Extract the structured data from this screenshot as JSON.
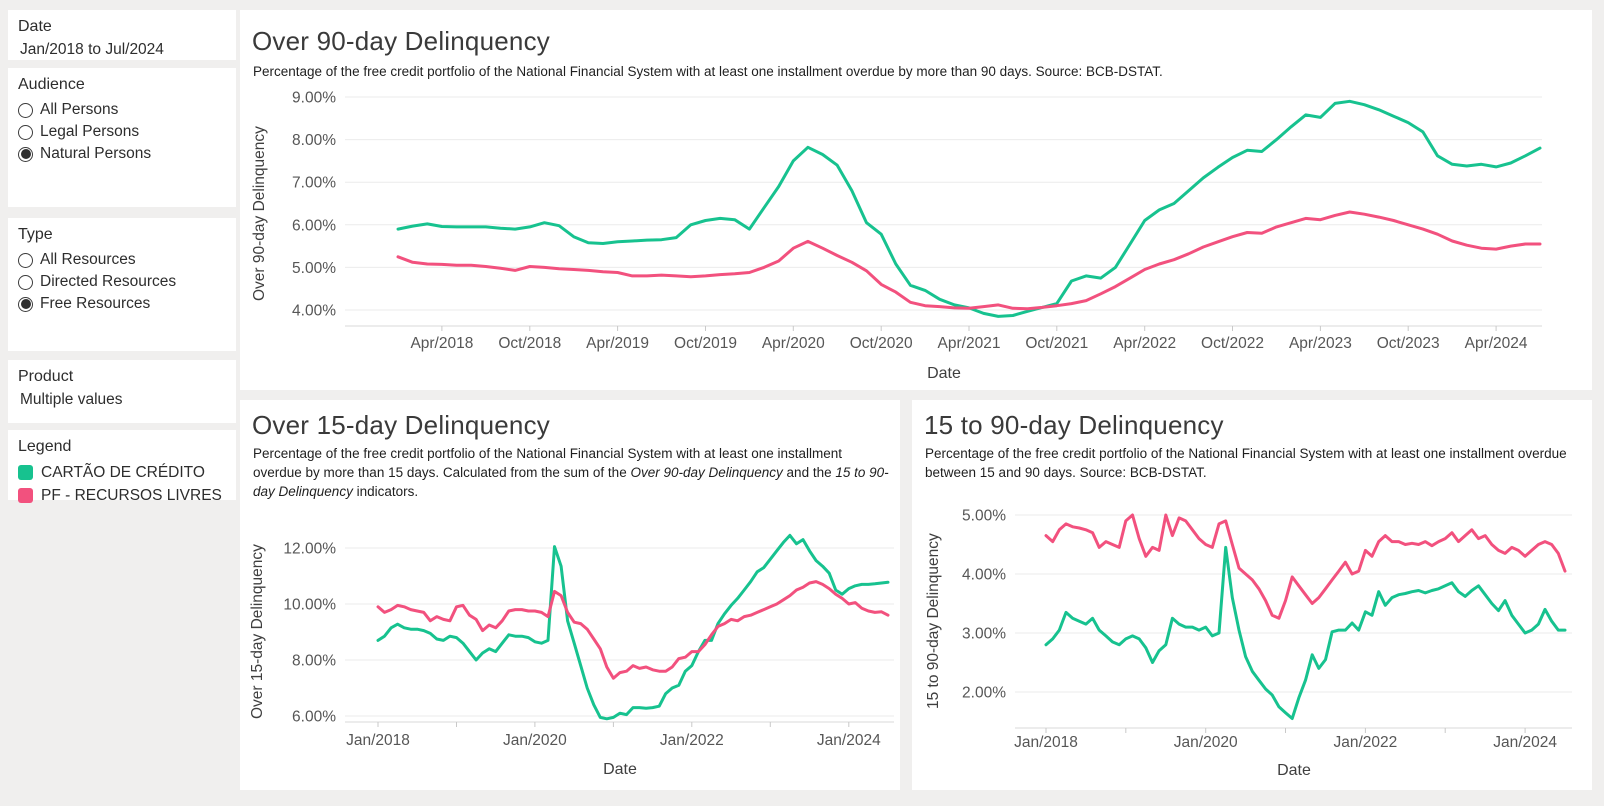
{
  "page": {
    "background": "#f0efee",
    "panel_bg": "#ffffff"
  },
  "colors": {
    "green": "#17c28f",
    "pink": "#f2517e",
    "grid": "#ebebeb",
    "axis_line": "#d8d8d8",
    "tick_mark": "#c9c9c9",
    "tick_text": "#565656"
  },
  "sidebar": {
    "date": {
      "title": "Date",
      "value": "Jan/2018 to Jul/2024"
    },
    "audience": {
      "title": "Audience",
      "options": [
        {
          "label": "All Persons",
          "selected": false
        },
        {
          "label": "Legal Persons",
          "selected": false
        },
        {
          "label": "Natural Persons",
          "selected": true
        }
      ]
    },
    "type": {
      "title": "Type",
      "options": [
        {
          "label": "All Resources",
          "selected": false
        },
        {
          "label": "Directed Resources",
          "selected": false
        },
        {
          "label": "Free Resources",
          "selected": true
        }
      ]
    },
    "product": {
      "title": "Product",
      "value": "Multiple values"
    },
    "legend": {
      "title": "Legend",
      "items": [
        {
          "label": "CARTÃO DE CRÉDITO",
          "color": "#17c28f"
        },
        {
          "label": "PF - RECURSOS LIVRES",
          "color": "#f2517e"
        }
      ]
    }
  },
  "chart_data": [
    {
      "type": "line",
      "name_slug": "over-90-day-delinquency",
      "title": "Over 90-day Delinquency",
      "subtitle_parts": [
        {
          "text": "Percentage of the free credit portfolio of the National Financial System with at least one installment overdue by more than 90 days. Source: BCB-DSTAT.",
          "italic": false
        }
      ],
      "xlabel": "Date",
      "ylabel": "Over 90-day Delinquency",
      "x_start": "Jan/2018",
      "x_end": "Jul/2024",
      "frequency": "monthly",
      "y_ticks": [
        4,
        5,
        6,
        7,
        8,
        9
      ],
      "ylim": [
        3.5,
        9.4
      ],
      "grid": true,
      "legend_position": "external-sidebar",
      "x_tick_months": [
        3,
        9,
        15,
        21,
        27,
        33,
        39,
        45,
        51,
        57,
        63,
        69,
        75
      ],
      "x_tick_labels": [
        "Apr/2018",
        "Oct/2018",
        "Apr/2019",
        "Oct/2019",
        "Apr/2020",
        "Oct/2020",
        "Apr/2021",
        "Oct/2021",
        "Apr/2022",
        "Oct/2022",
        "Apr/2023",
        "Oct/2023",
        "Apr/2024"
      ],
      "x_minor_tick_months": [
        3,
        9,
        15,
        21,
        27,
        33,
        39,
        45,
        51,
        57,
        63,
        69,
        75
      ],
      "series": [
        {
          "name": "CARTÃO DE CRÉDITO",
          "color": "#17c28f",
          "values": [
            5.9,
            5.97,
            6.02,
            5.96,
            5.95,
            5.95,
            5.95,
            5.92,
            5.9,
            5.95,
            6.05,
            5.98,
            5.72,
            5.58,
            5.56,
            5.6,
            5.62,
            5.64,
            5.65,
            5.7,
            6.0,
            6.1,
            6.15,
            6.12,
            5.9,
            6.4,
            6.9,
            7.5,
            7.82,
            7.65,
            7.4,
            6.8,
            6.05,
            5.78,
            5.08,
            4.58,
            4.46,
            4.25,
            4.12,
            4.05,
            3.92,
            3.85,
            3.87,
            3.97,
            4.06,
            4.15,
            4.68,
            4.8,
            4.75,
            5.0,
            5.55,
            6.1,
            6.35,
            6.5,
            6.8,
            7.1,
            7.35,
            7.58,
            7.75,
            7.72,
            8.0,
            8.3,
            8.58,
            8.52,
            8.85,
            8.9,
            8.82,
            8.7,
            8.55,
            8.4,
            8.18,
            7.62,
            7.42,
            7.38,
            7.42,
            7.36,
            7.45,
            7.62,
            7.8
          ]
        },
        {
          "name": "PF - RECURSOS LIVRES",
          "color": "#f2517e",
          "values": [
            5.25,
            5.12,
            5.08,
            5.07,
            5.05,
            5.05,
            5.02,
            4.98,
            4.93,
            5.02,
            5.0,
            4.97,
            4.95,
            4.93,
            4.9,
            4.88,
            4.8,
            4.8,
            4.82,
            4.8,
            4.78,
            4.8,
            4.83,
            4.85,
            4.88,
            5.0,
            5.15,
            5.45,
            5.61,
            5.45,
            5.28,
            5.12,
            4.92,
            4.6,
            4.42,
            4.18,
            4.1,
            4.08,
            4.05,
            4.04,
            4.08,
            4.12,
            4.04,
            4.03,
            4.06,
            4.1,
            4.15,
            4.22,
            4.38,
            4.55,
            4.75,
            4.95,
            5.08,
            5.18,
            5.32,
            5.48,
            5.6,
            5.72,
            5.82,
            5.8,
            5.95,
            6.05,
            6.15,
            6.12,
            6.22,
            6.3,
            6.25,
            6.18,
            6.1,
            6.0,
            5.9,
            5.78,
            5.62,
            5.52,
            5.45,
            5.43,
            5.5,
            5.55,
            5.55
          ]
        }
      ]
    },
    {
      "type": "line",
      "name_slug": "over-15-day-delinquency",
      "title": "Over 15-day Delinquency",
      "subtitle_parts": [
        {
          "text": "Percentage of the free credit portfolio of the National Financial System with at least one installment overdue by more than 15 days. Calculated from the sum of the ",
          "italic": false
        },
        {
          "text": "Over 90-day Delinquency",
          "italic": true
        },
        {
          "text": " and the ",
          "italic": false
        },
        {
          "text": "15 to 90-day Delinquency",
          "italic": true
        },
        {
          "text": " indicators.",
          "italic": false
        }
      ],
      "xlabel": "Date",
      "ylabel": "Over 15-day Delinquency",
      "x_start": "Jan/2018",
      "x_end": "Jul/2024",
      "frequency": "monthly",
      "y_ticks": [
        6,
        8,
        10,
        12
      ],
      "ylim": [
        5.4,
        12.9
      ],
      "grid": true,
      "legend_position": "external-sidebar",
      "x_tick_months": [
        0,
        24,
        48,
        72
      ],
      "x_tick_labels": [
        "Jan/2018",
        "Jan/2020",
        "Jan/2022",
        "Jan/2024"
      ],
      "x_minor_tick_months": [
        0,
        12,
        24,
        36,
        48,
        60,
        72
      ],
      "series": [
        {
          "name": "CARTÃO DE CRÉDITO",
          "color": "#17c28f",
          "values": [
            8.7,
            8.85,
            9.15,
            9.28,
            9.15,
            9.1,
            9.1,
            9.05,
            8.95,
            8.75,
            8.7,
            8.85,
            8.8,
            8.6,
            8.3,
            8.0,
            8.25,
            8.4,
            8.3,
            8.6,
            8.9,
            8.85,
            8.85,
            8.8,
            8.65,
            8.6,
            8.7,
            12.05,
            11.35,
            9.4,
            8.6,
            7.8,
            7.0,
            6.4,
            5.95,
            5.9,
            5.95,
            6.1,
            6.05,
            6.3,
            6.3,
            6.28,
            6.3,
            6.35,
            6.8,
            7.0,
            7.1,
            7.6,
            7.8,
            8.3,
            8.7,
            8.7,
            9.3,
            9.65,
            9.95,
            10.2,
            10.5,
            10.8,
            11.15,
            11.3,
            11.6,
            11.9,
            12.2,
            12.45,
            12.15,
            12.3,
            11.9,
            11.55,
            11.35,
            11.1,
            10.5,
            10.35,
            10.55,
            10.65,
            10.7,
            10.7,
            10.72,
            10.75,
            10.78
          ]
        },
        {
          "name": "PF - RECURSOS LIVRES",
          "color": "#f2517e",
          "values": [
            9.9,
            9.7,
            9.8,
            9.95,
            9.9,
            9.8,
            9.75,
            9.7,
            9.4,
            9.55,
            9.45,
            9.4,
            9.9,
            9.95,
            9.6,
            9.45,
            9.05,
            9.25,
            9.15,
            9.4,
            9.75,
            9.8,
            9.8,
            9.75,
            9.75,
            9.7,
            9.55,
            10.45,
            10.3,
            9.7,
            9.35,
            9.3,
            9.1,
            8.75,
            8.4,
            7.75,
            7.35,
            7.55,
            7.6,
            7.8,
            7.7,
            7.75,
            7.65,
            7.6,
            7.6,
            7.75,
            8.05,
            8.1,
            8.3,
            8.3,
            8.55,
            8.9,
            9.2,
            9.3,
            9.45,
            9.4,
            9.55,
            9.6,
            9.7,
            9.8,
            9.9,
            10.0,
            10.15,
            10.3,
            10.5,
            10.6,
            10.75,
            10.8,
            10.7,
            10.55,
            10.35,
            10.2,
            10.0,
            10.05,
            9.85,
            9.75,
            9.7,
            9.72,
            9.6
          ]
        }
      ]
    },
    {
      "type": "line",
      "name_slug": "15-to-90-day-delinquency",
      "title": "15 to 90-day Delinquency",
      "subtitle_parts": [
        {
          "text": "Percentage of the free credit portfolio of the National Financial System with at least one installment overdue between 15 and 90 days. Source: BCB-DSTAT.",
          "italic": false
        }
      ],
      "xlabel": "Date",
      "ylabel": "15 to 90-day Delinquency",
      "x_start": "Jan/2018",
      "x_end": "Jul/2024",
      "frequency": "monthly",
      "y_ticks": [
        2,
        3,
        4,
        5
      ],
      "ylim": [
        1.3,
        5.2
      ],
      "grid": true,
      "legend_position": "external-sidebar",
      "x_tick_months": [
        0,
        24,
        48,
        72
      ],
      "x_tick_labels": [
        "Jan/2018",
        "Jan/2020",
        "Jan/2022",
        "Jan/2024"
      ],
      "x_minor_tick_months": [
        0,
        12,
        24,
        36,
        48,
        60,
        72
      ],
      "series": [
        {
          "name": "CARTÃO DE CRÉDITO",
          "color": "#17c28f",
          "values": [
            2.8,
            2.9,
            3.05,
            3.35,
            3.25,
            3.2,
            3.15,
            3.25,
            3.05,
            2.95,
            2.85,
            2.8,
            2.9,
            2.95,
            2.9,
            2.75,
            2.5,
            2.7,
            2.8,
            3.25,
            3.15,
            3.1,
            3.1,
            3.05,
            3.1,
            2.95,
            3.0,
            4.45,
            3.6,
            3.05,
            2.6,
            2.35,
            2.2,
            2.05,
            1.95,
            1.75,
            1.65,
            1.55,
            1.9,
            2.2,
            2.63,
            2.4,
            2.55,
            3.02,
            3.05,
            3.05,
            3.17,
            3.05,
            3.36,
            3.3,
            3.7,
            3.47,
            3.6,
            3.65,
            3.67,
            3.7,
            3.72,
            3.68,
            3.72,
            3.75,
            3.8,
            3.85,
            3.7,
            3.62,
            3.72,
            3.8,
            3.65,
            3.5,
            3.38,
            3.55,
            3.3,
            3.15,
            3.0,
            3.05,
            3.15,
            3.4,
            3.2,
            3.05,
            3.05
          ]
        },
        {
          "name": "PF - RECURSOS LIVRES",
          "color": "#f2517e",
          "values": [
            4.65,
            4.55,
            4.75,
            4.85,
            4.8,
            4.78,
            4.75,
            4.7,
            4.45,
            4.55,
            4.5,
            4.45,
            4.9,
            5.0,
            4.6,
            4.3,
            4.45,
            4.4,
            5.0,
            4.65,
            4.95,
            4.9,
            4.75,
            4.6,
            4.5,
            4.45,
            4.85,
            4.9,
            4.5,
            4.1,
            4.0,
            3.9,
            3.75,
            3.55,
            3.3,
            3.25,
            3.55,
            3.95,
            3.8,
            3.65,
            3.5,
            3.6,
            3.75,
            3.9,
            4.05,
            4.2,
            4.0,
            4.05,
            4.4,
            4.3,
            4.55,
            4.65,
            4.55,
            4.55,
            4.5,
            4.52,
            4.5,
            4.55,
            4.48,
            4.55,
            4.6,
            4.7,
            4.55,
            4.65,
            4.75,
            4.6,
            4.65,
            4.5,
            4.4,
            4.35,
            4.45,
            4.4,
            4.3,
            4.4,
            4.5,
            4.55,
            4.5,
            4.35,
            4.05
          ]
        }
      ]
    }
  ]
}
